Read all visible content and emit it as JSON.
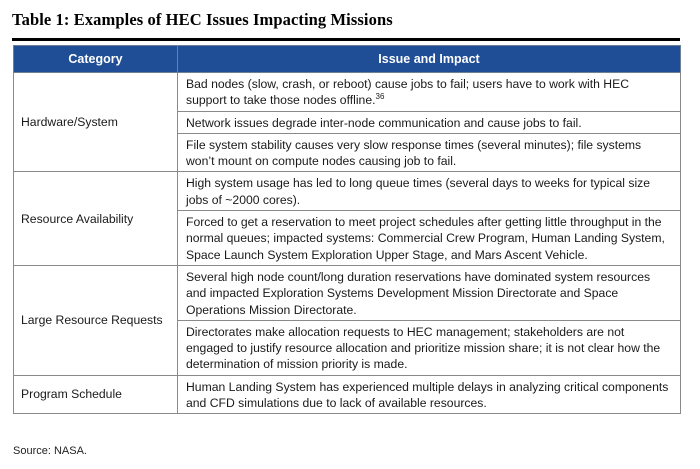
{
  "caption": "Table 1: Examples of HEC Issues Impacting Missions",
  "columns": {
    "category": "Category",
    "issue": "Issue and Impact"
  },
  "groups": [
    {
      "category": "Hardware/System",
      "issues": [
        {
          "text": "Bad nodes (slow, crash, or reboot) cause jobs to fail; users have to work with HEC support to take those nodes offline.",
          "footnote": "36"
        },
        {
          "text": "Network issues degrade inter-node communication and cause jobs to fail."
        },
        {
          "text": "File system stability causes very slow response times (several minutes); file systems won’t mount on compute nodes causing job to fail."
        }
      ]
    },
    {
      "category": "Resource Availability",
      "issues": [
        {
          "text": "High system usage has led to long queue times (several days to weeks for typical size jobs of ~2000 cores)."
        },
        {
          "text": "Forced to get a reservation to meet project schedules after getting little throughput in the normal queues; impacted systems: Commercial Crew Program, Human Landing System, Space Launch System Exploration Upper Stage, and Mars Ascent Vehicle."
        }
      ]
    },
    {
      "category": "Large Resource Requests",
      "issues": [
        {
          "text": "Several high node count/long duration reservations have dominated system resources and impacted Exploration Systems Development Mission Directorate and Space Operations Mission Directorate."
        },
        {
          "text": "Directorates make allocation requests to HEC management; stakeholders are not engaged to justify resource allocation and prioritize mission share; it is not clear how the determination of mission priority is made."
        }
      ]
    },
    {
      "category": "Program Schedule",
      "issues": [
        {
          "text": "Human Landing System has experienced multiple delays in analyzing critical components and CFD simulations due to lack of available resources."
        }
      ]
    }
  ],
  "source": "Source: NASA.",
  "colors": {
    "header_bg": "#1f4e96",
    "header_text": "#ffffff",
    "border": "#8a8a8a"
  }
}
